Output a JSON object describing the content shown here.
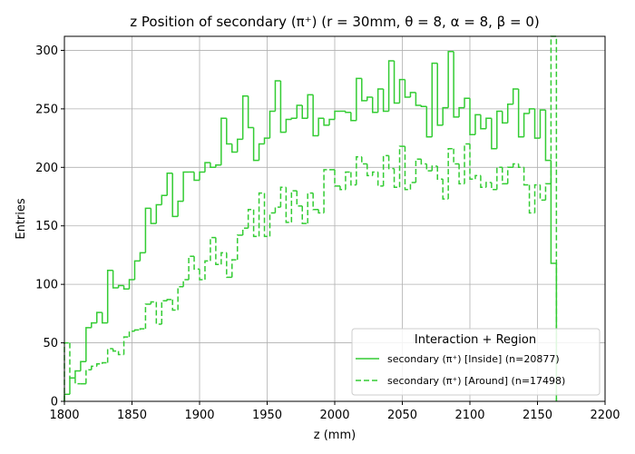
{
  "chart_data": {
    "type": "histogram",
    "title": "z Position of secondary (π⁺) (r = 30mm, θ = 8, α = 8, β = 0)",
    "xlabel": "z (mm)",
    "ylabel": "Entries",
    "xlim": [
      1800,
      2200
    ],
    "ylim": [
      0,
      312
    ],
    "xticks": [
      1800,
      1850,
      1900,
      1950,
      2000,
      2050,
      2100,
      2150,
      2200
    ],
    "yticks": [
      0,
      50,
      100,
      150,
      200,
      250,
      300
    ],
    "grid": true,
    "bin_width": 4,
    "legend": {
      "title": "Interaction + Region",
      "placement": "lower-right"
    },
    "series": [
      {
        "name": "secondary (π⁺) [Inside] (n=20877)",
        "color": "#33cc33",
        "linestyle": "solid",
        "values": [
          6,
          20,
          26,
          34,
          63,
          67,
          76,
          67,
          112,
          97,
          99,
          96,
          104,
          120,
          127,
          165,
          152,
          168,
          176,
          195,
          158,
          171,
          196,
          196,
          189,
          196,
          204,
          200,
          202,
          242,
          220,
          213,
          224,
          261,
          234,
          206,
          220,
          225,
          248,
          274,
          230,
          241,
          242,
          253,
          242,
          262,
          227,
          242,
          236,
          241,
          248,
          248,
          247,
          240,
          276,
          257,
          260,
          247,
          267,
          248,
          291,
          255,
          275,
          260,
          264,
          253,
          252,
          226,
          289,
          236,
          251,
          299,
          243,
          251,
          259,
          228,
          245,
          233,
          242,
          216,
          248,
          238,
          254,
          267,
          226,
          246,
          250,
          225,
          249,
          206,
          118
        ]
      },
      {
        "name": "secondary (π⁺) [Around] (n=17498)",
        "color": "#33cc33",
        "linestyle": "dashed",
        "values": [
          50,
          20,
          15,
          15,
          27,
          30,
          32,
          33,
          45,
          43,
          40,
          55,
          60,
          61,
          62,
          83,
          85,
          66,
          86,
          87,
          78,
          98,
          104,
          124,
          113,
          104,
          120,
          140,
          117,
          127,
          106,
          121,
          142,
          148,
          164,
          141,
          178,
          141,
          161,
          166,
          183,
          153,
          180,
          167,
          152,
          178,
          164,
          161,
          198,
          198,
          184,
          181,
          196,
          185,
          209,
          203,
          193,
          196,
          184,
          210,
          199,
          183,
          218,
          181,
          187,
          207,
          203,
          197,
          201,
          190,
          173,
          216,
          203,
          186,
          220,
          190,
          193,
          183,
          187,
          181,
          200,
          186,
          200,
          203,
          200,
          185,
          161,
          185,
          172,
          186,
          312
        ]
      }
    ]
  }
}
